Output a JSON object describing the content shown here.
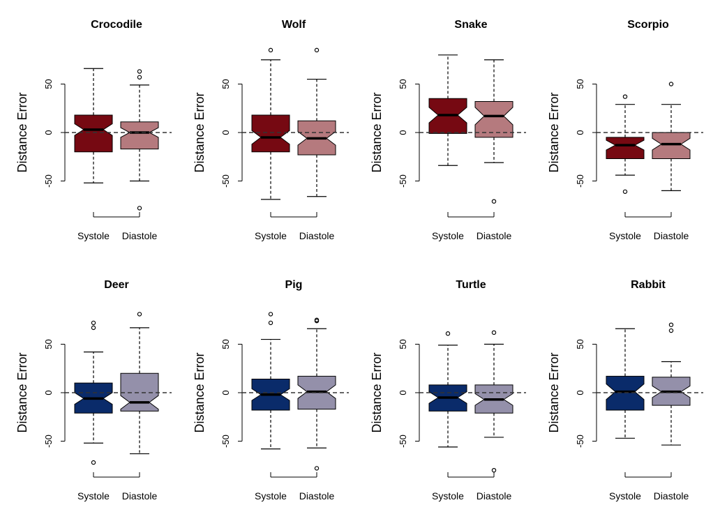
{
  "colors": {
    "systole_red": "#760912",
    "diastole_red": "#b57a7e",
    "systole_blue": "#0a2b6a",
    "diastole_blue": "#9490aa"
  },
  "chart_data": [
    {
      "type": "box",
      "title": "Crocodile",
      "ylabel": "Distance Error",
      "categories": [
        "Systole",
        "Diastole"
      ],
      "yticks": [
        -50,
        0,
        50
      ],
      "ylim": [
        -73,
        93
      ],
      "reference_line": 0,
      "boxes": [
        {
          "color": "systole_red",
          "whisker_low": -52,
          "q1": -20,
          "median": 3,
          "q3": 18,
          "whisker_high": 66,
          "notch_low": -3,
          "notch_high": 9,
          "outliers": []
        },
        {
          "color": "diastole_red",
          "whisker_low": -50,
          "q1": -17,
          "median": 0,
          "q3": 11,
          "whisker_high": 49,
          "notch_low": -5,
          "notch_high": 5,
          "outliers": [
            -78,
            57,
            63
          ]
        }
      ]
    },
    {
      "type": "box",
      "title": "Wolf",
      "ylabel": "Distance Error",
      "categories": [
        "Systole",
        "Diastole"
      ],
      "yticks": [
        -50,
        0,
        50
      ],
      "ylim": [
        -73,
        93
      ],
      "reference_line": 0,
      "boxes": [
        {
          "color": "systole_red",
          "whisker_low": -69,
          "q1": -20,
          "median": -5,
          "q3": 18,
          "whisker_high": 75,
          "notch_low": -12,
          "notch_high": 2,
          "outliers": [
            85
          ]
        },
        {
          "color": "diastole_red",
          "whisker_low": -66,
          "q1": -23,
          "median": -6,
          "q3": 12,
          "whisker_high": 55,
          "notch_low": -13,
          "notch_high": 1,
          "outliers": [
            85
          ]
        }
      ]
    },
    {
      "type": "box",
      "title": "Snake",
      "ylabel": "Distance Error",
      "categories": [
        "Systole",
        "Diastole"
      ],
      "yticks": [
        -50,
        0,
        50
      ],
      "ylim": [
        -73,
        93
      ],
      "reference_line": 0,
      "boxes": [
        {
          "color": "systole_red",
          "whisker_low": -34,
          "q1": -1,
          "median": 18,
          "q3": 35,
          "whisker_high": 80,
          "notch_low": 10,
          "notch_high": 26,
          "outliers": []
        },
        {
          "color": "diastole_red",
          "whisker_low": -31,
          "q1": -5,
          "median": 17,
          "q3": 32,
          "whisker_high": 75,
          "notch_low": 8,
          "notch_high": 26,
          "outliers": [
            -71
          ]
        }
      ]
    },
    {
      "type": "box",
      "title": "Scorpio",
      "ylabel": "Distance Error",
      "categories": [
        "Systole",
        "Diastole"
      ],
      "yticks": [
        -50,
        0,
        50
      ],
      "ylim": [
        -73,
        93
      ],
      "reference_line": 0,
      "boxes": [
        {
          "color": "systole_red",
          "whisker_low": -44,
          "q1": -27,
          "median": -13,
          "q3": -5,
          "whisker_high": 29,
          "notch_low": -18,
          "notch_high": -8,
          "outliers": [
            -61,
            37
          ]
        },
        {
          "color": "diastole_red",
          "whisker_low": -60,
          "q1": -27,
          "median": -12,
          "q3": 0,
          "whisker_high": 29,
          "notch_low": -18,
          "notch_high": -6,
          "outliers": [
            50
          ]
        }
      ]
    },
    {
      "type": "box",
      "title": "Deer",
      "ylabel": "Distance Error",
      "categories": [
        "Systole",
        "Diastole"
      ],
      "yticks": [
        -50,
        0,
        50
      ],
      "ylim": [
        -73,
        93
      ],
      "reference_line": 0,
      "boxes": [
        {
          "color": "systole_blue",
          "whisker_low": -52,
          "q1": -21,
          "median": -6,
          "q3": 10,
          "whisker_high": 42,
          "notch_low": -12,
          "notch_high": 0,
          "outliers": [
            -72,
            67,
            72
          ]
        },
        {
          "color": "diastole_blue",
          "whisker_low": -63,
          "q1": -19,
          "median": -10,
          "q3": 20,
          "whisker_high": 67,
          "notch_low": -17,
          "notch_high": -3,
          "outliers": [
            81
          ]
        }
      ]
    },
    {
      "type": "box",
      "title": "Pig",
      "ylabel": "Distance Error",
      "categories": [
        "Systole",
        "Diastole"
      ],
      "yticks": [
        -50,
        0,
        50
      ],
      "ylim": [
        -73,
        93
      ],
      "reference_line": 0,
      "boxes": [
        {
          "color": "systole_blue",
          "whisker_low": -58,
          "q1": -18,
          "median": -2,
          "q3": 14,
          "whisker_high": 55,
          "notch_low": -8,
          "notch_high": 4,
          "outliers": [
            72,
            81
          ]
        },
        {
          "color": "diastole_blue",
          "whisker_low": -57,
          "q1": -17,
          "median": 1,
          "q3": 17,
          "whisker_high": 66,
          "notch_low": -6,
          "notch_high": 8,
          "outliers": [
            -78,
            74,
            75
          ]
        }
      ]
    },
    {
      "type": "box",
      "title": "Turtle",
      "ylabel": "Distance Error",
      "categories": [
        "Systole",
        "Diastole"
      ],
      "yticks": [
        -50,
        0,
        50
      ],
      "ylim": [
        -73,
        93
      ],
      "reference_line": 0,
      "boxes": [
        {
          "color": "systole_blue",
          "whisker_low": -56,
          "q1": -19,
          "median": -5,
          "q3": 8,
          "whisker_high": 49,
          "notch_low": -11,
          "notch_high": 1,
          "outliers": [
            61
          ]
        },
        {
          "color": "diastole_blue",
          "whisker_low": -46,
          "q1": -21,
          "median": -7,
          "q3": 8,
          "whisker_high": 50,
          "notch_low": -13,
          "notch_high": -1,
          "outliers": [
            -80,
            62
          ]
        }
      ]
    },
    {
      "type": "box",
      "title": "Rabbit",
      "ylabel": "Distance Error",
      "categories": [
        "Systole",
        "Diastole"
      ],
      "yticks": [
        -50,
        0,
        50
      ],
      "ylim": [
        -73,
        93
      ],
      "reference_line": 0,
      "boxes": [
        {
          "color": "systole_blue",
          "whisker_low": -47,
          "q1": -18,
          "median": 1,
          "q3": 17,
          "whisker_high": 66,
          "notch_low": -7,
          "notch_high": 9,
          "outliers": []
        },
        {
          "color": "diastole_blue",
          "whisker_low": -54,
          "q1": -13,
          "median": 1,
          "q3": 16,
          "whisker_high": 32,
          "notch_low": -5,
          "notch_high": 7,
          "outliers": [
            64,
            70
          ]
        }
      ]
    }
  ]
}
